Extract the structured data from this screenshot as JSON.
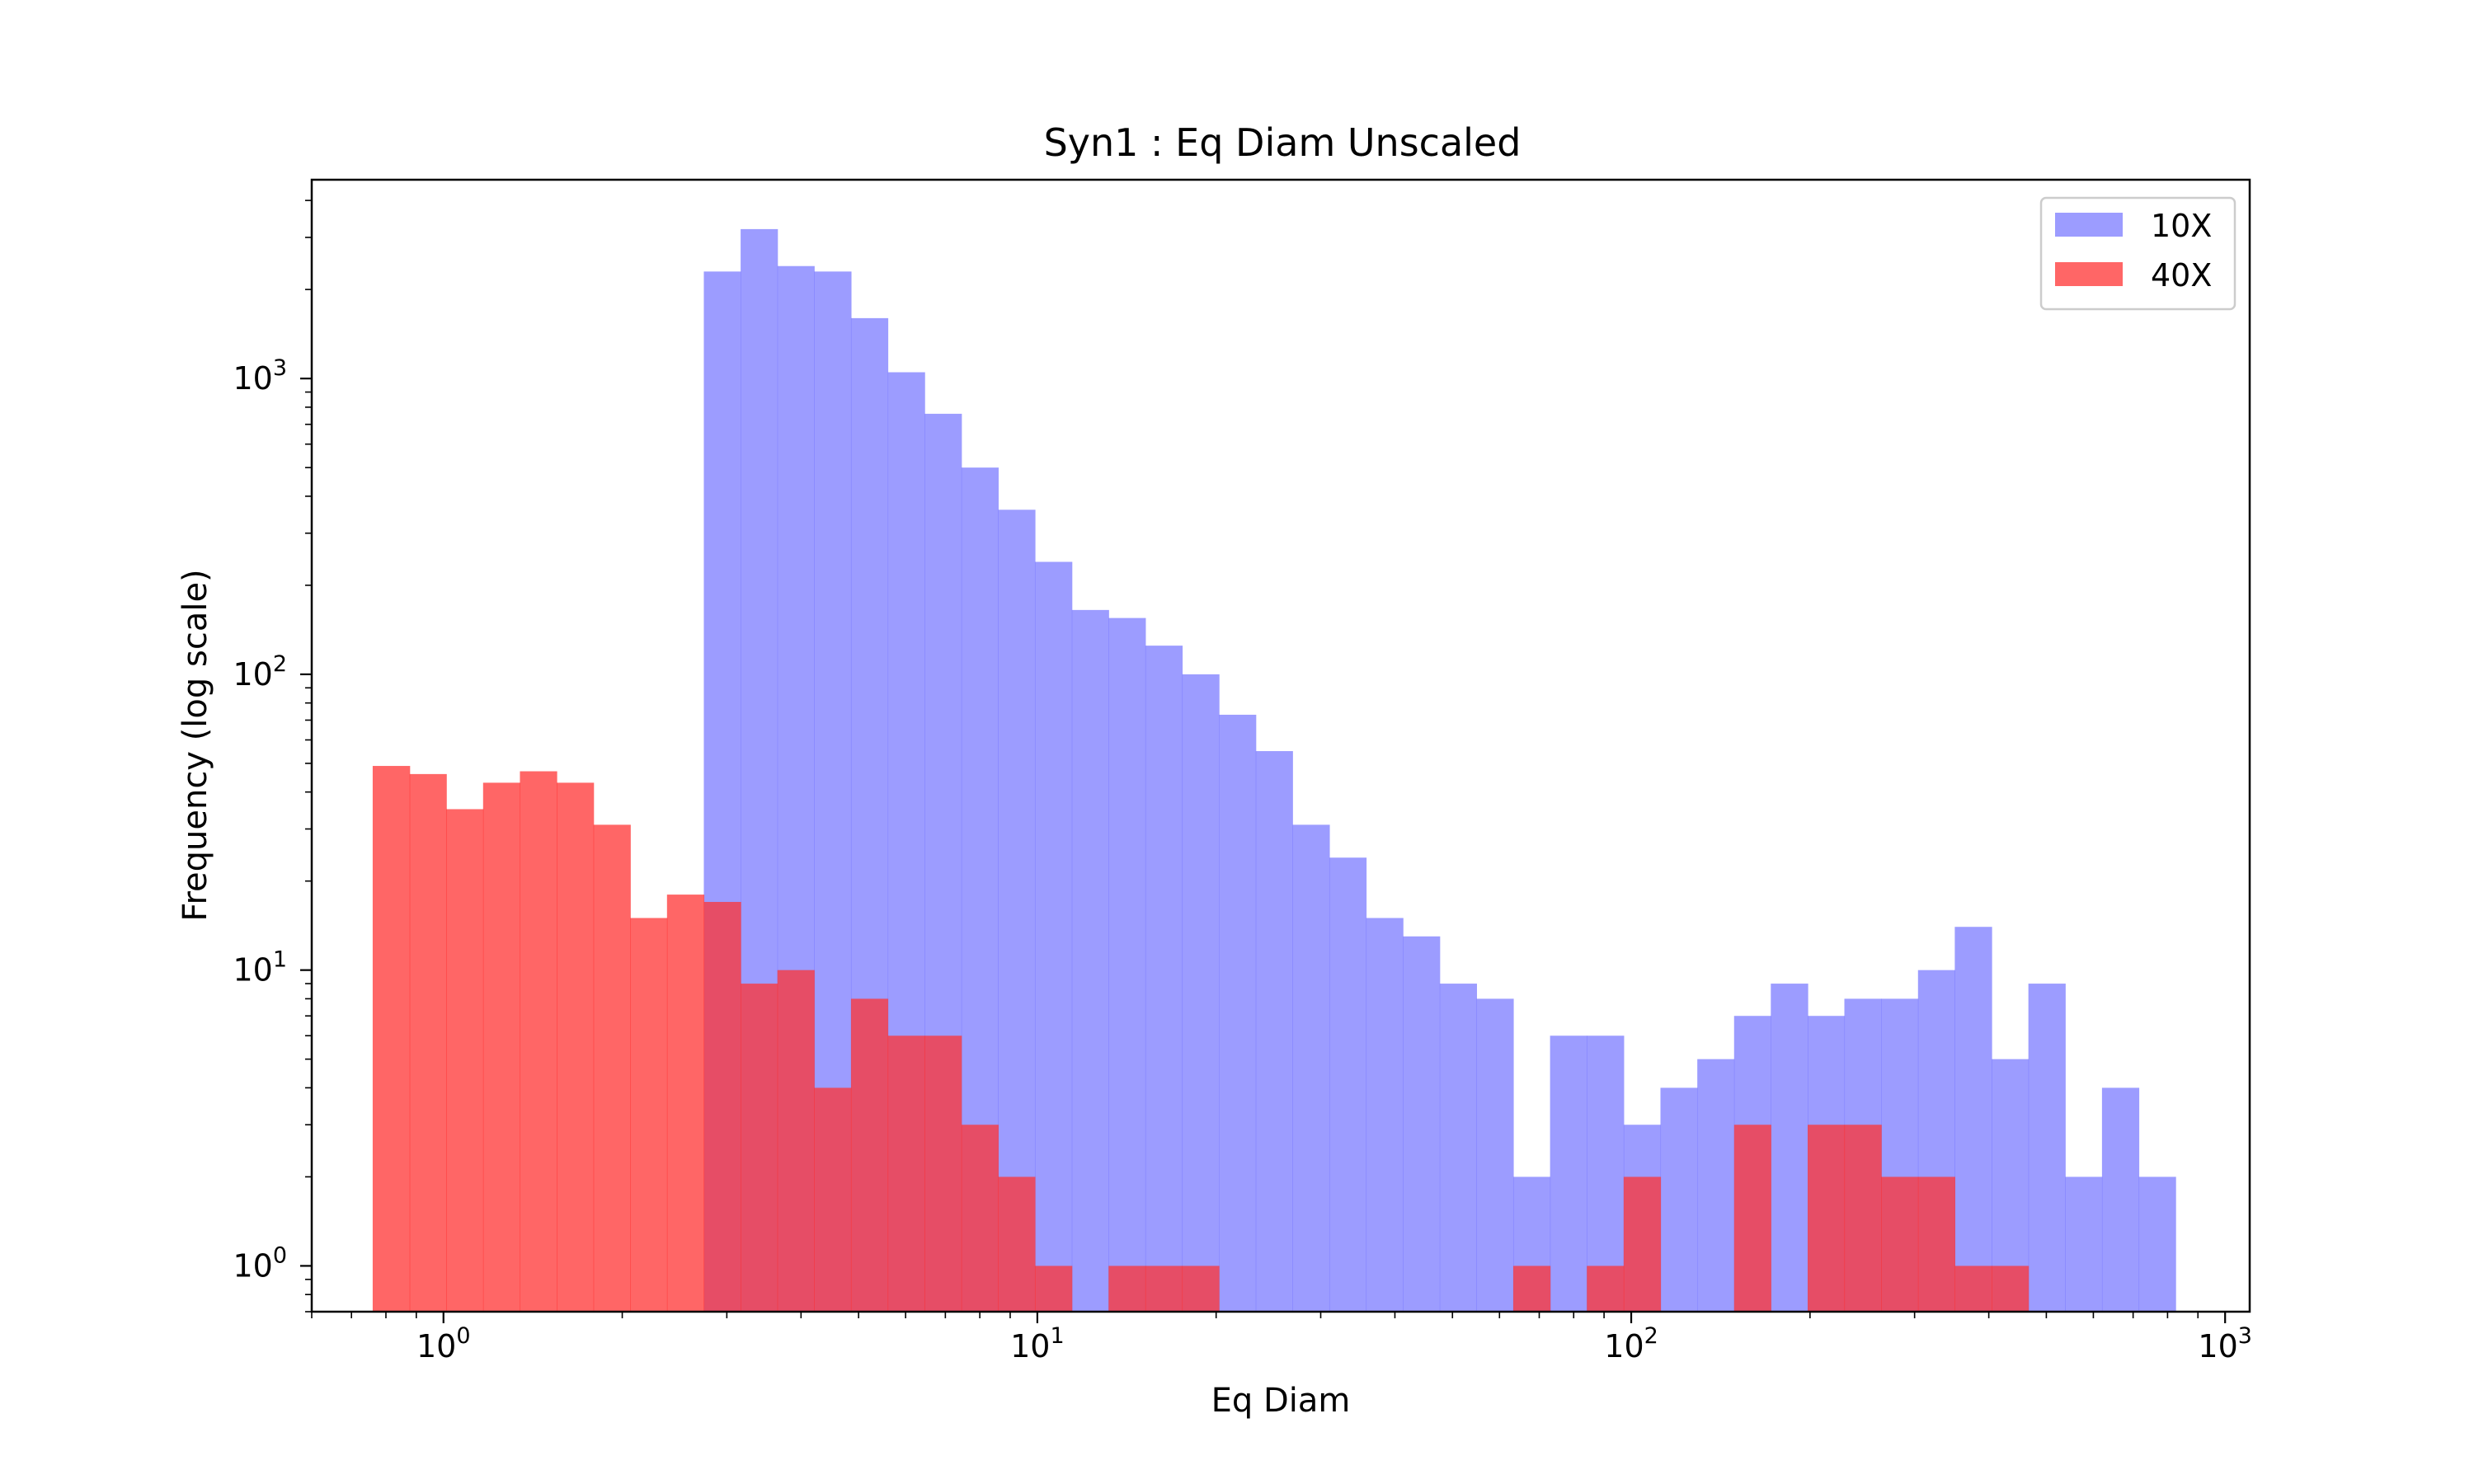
{
  "chart_data": {
    "type": "bar",
    "subtype": "overlaid histogram",
    "title": "Syn1 : Eq Diam Unscaled",
    "xlabel": "Eq Diam",
    "ylabel": "Frequency (log scale)",
    "xscale": "log",
    "yscale": "log",
    "xlim": [
      0.6,
      1100
    ],
    "ylim": [
      0.7,
      4700
    ],
    "x_ticks": [
      {
        "base": "10",
        "exp": "0",
        "value": 1
      },
      {
        "base": "10",
        "exp": "1",
        "value": 10
      },
      {
        "base": "10",
        "exp": "2",
        "value": 100
      },
      {
        "base": "10",
        "exp": "3",
        "value": 1000
      }
    ],
    "y_ticks": [
      {
        "base": "10",
        "exp": "0",
        "value": 1
      },
      {
        "base": "10",
        "exp": "1",
        "value": 10
      },
      {
        "base": "10",
        "exp": "2",
        "value": 100
      },
      {
        "base": "10",
        "exp": "3",
        "value": 1000
      }
    ],
    "bin_edges": [
      0.76,
      0.877,
      1.011,
      1.166,
      1.345,
      1.551,
      1.789,
      2.063,
      2.379,
      2.744,
      3.165,
      3.65,
      4.209,
      4.855,
      5.599,
      6.458,
      7.448,
      8.59,
      9.907,
      11.43,
      13.18,
      15.2,
      17.53,
      20.22,
      23.32,
      26.89,
      31.02,
      35.77,
      41.26,
      47.58,
      54.88,
      63.29,
      73.0,
      84.19,
      97.1,
      112.0,
      129.2,
      149.0,
      171.8,
      198.2,
      228.5,
      263.6,
      304.0,
      350.6,
      404.4,
      466.4,
      537.9,
      620.4,
      715.5,
      825.2
    ],
    "series": [
      {
        "name": "10X",
        "color": "#7b7bff",
        "alpha": 0.75,
        "values": [
          0,
          0,
          0,
          0,
          0,
          0,
          0,
          0,
          0,
          2300,
          3200,
          2400,
          2300,
          1600,
          1050,
          760,
          500,
          360,
          240,
          165,
          155,
          125,
          100,
          73,
          55,
          31,
          24,
          15,
          13,
          9,
          8,
          2,
          6,
          6,
          3,
          4,
          5,
          7,
          9,
          7,
          8,
          8,
          10,
          14,
          5,
          9,
          2,
          4,
          2
        ]
      },
      {
        "name": "40X",
        "color": "#ff3333",
        "alpha": 0.75,
        "values": [
          49,
          46,
          35,
          43,
          47,
          43,
          31,
          15,
          18,
          17,
          9,
          10,
          4,
          8,
          6,
          6,
          3,
          2,
          1,
          0,
          1,
          1,
          1,
          0,
          0,
          0,
          0,
          0,
          0,
          0,
          0,
          1,
          0,
          1,
          2,
          0,
          0,
          3,
          0,
          3,
          3,
          2,
          2,
          1,
          1,
          0,
          0,
          0,
          0
        ]
      }
    ],
    "legend": {
      "placement": "upper-right",
      "labels": [
        "10X",
        "40X"
      ]
    },
    "grid": false
  }
}
